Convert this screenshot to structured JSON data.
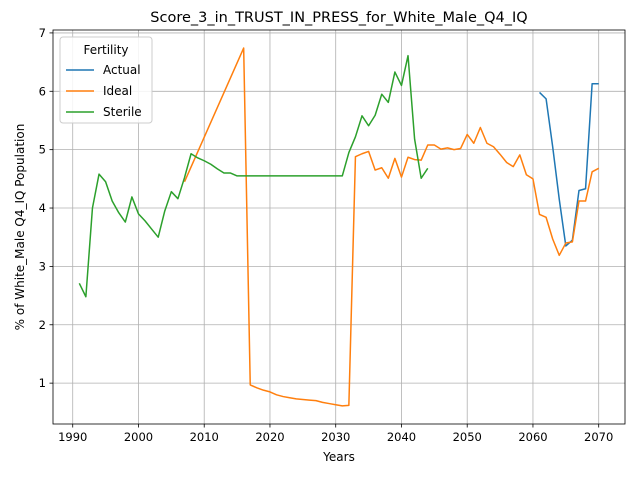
{
  "chart_data": {
    "type": "line",
    "title": "Score_3_in_TRUST_IN_PRESS_for_White_Male_Q4_IQ",
    "xlabel": "Years",
    "ylabel": "% of White_Male Q4_IQ Population",
    "xlim": [
      1987,
      2074
    ],
    "ylim": [
      0.3,
      7.05
    ],
    "xticks": [
      1990,
      2000,
      2010,
      2020,
      2030,
      2040,
      2050,
      2060,
      2070
    ],
    "yticks": [
      1,
      2,
      3,
      4,
      5,
      6,
      7
    ],
    "grid": true,
    "legend": {
      "title": "Fertility",
      "placement": "upper-left"
    },
    "series": [
      {
        "name": "Actual",
        "color": "#1f77b4",
        "x": [
          2061,
          2062,
          2063,
          2064,
          2065,
          2066,
          2067,
          2068,
          2069,
          2070
        ],
        "y": [
          5.98,
          5.87,
          5.05,
          4.15,
          3.35,
          3.45,
          4.3,
          4.33,
          6.13,
          6.13
        ]
      },
      {
        "name": "Ideal",
        "color": "#ff7f0e",
        "x": [
          2007,
          2016,
          2017,
          2018,
          2019,
          2020,
          2021,
          2022,
          2023,
          2024,
          2025,
          2026,
          2027,
          2028,
          2029,
          2030,
          2031,
          2032,
          2033,
          2034,
          2035,
          2036,
          2037,
          2038,
          2039,
          2040,
          2041,
          2042,
          2043,
          2044,
          2045,
          2046,
          2047,
          2048,
          2049,
          2050,
          2051,
          2052,
          2053,
          2054,
          2055,
          2056,
          2057,
          2058,
          2059,
          2060,
          2061,
          2062,
          2063,
          2064,
          2065,
          2066,
          2067,
          2068,
          2069,
          2070
        ],
        "y": [
          4.45,
          6.74,
          0.97,
          0.92,
          0.88,
          0.85,
          0.8,
          0.77,
          0.75,
          0.73,
          0.72,
          0.71,
          0.7,
          0.67,
          0.65,
          0.63,
          0.61,
          0.62,
          4.88,
          4.93,
          4.97,
          4.65,
          4.69,
          4.51,
          4.85,
          4.53,
          4.87,
          4.83,
          4.82,
          5.08,
          5.08,
          5.01,
          5.03,
          5.0,
          5.02,
          5.26,
          5.11,
          5.38,
          5.11,
          5.05,
          4.92,
          4.78,
          4.71,
          4.91,
          4.57,
          4.5,
          3.89,
          3.84,
          3.47,
          3.19,
          3.4,
          3.42,
          4.12,
          4.12,
          4.62,
          4.68
        ]
      },
      {
        "name": "Sterile",
        "color": "#2ca02c",
        "x": [
          1991,
          1992,
          1993,
          1994,
          1995,
          1996,
          1997,
          1998,
          1999,
          2000,
          2001,
          2002,
          2003,
          2004,
          2005,
          2006,
          2007,
          2008,
          2009,
          2010,
          2011,
          2012,
          2013,
          2014,
          2015,
          2016,
          2017,
          2018,
          2019,
          2020,
          2021,
          2022,
          2023,
          2024,
          2025,
          2026,
          2027,
          2028,
          2029,
          2030,
          2031,
          2032,
          2033,
          2034,
          2035,
          2036,
          2037,
          2038,
          2039,
          2040,
          2041,
          2042,
          2043,
          2044
        ],
        "y": [
          2.71,
          2.48,
          4.0,
          4.58,
          4.45,
          4.12,
          3.92,
          3.76,
          4.19,
          3.9,
          3.78,
          3.64,
          3.5,
          3.95,
          4.28,
          4.16,
          4.52,
          4.93,
          4.86,
          4.81,
          4.75,
          4.67,
          4.6,
          4.6,
          4.55,
          4.55,
          4.55,
          4.55,
          4.55,
          4.55,
          4.55,
          4.55,
          4.55,
          4.55,
          4.55,
          4.55,
          4.55,
          4.55,
          4.55,
          4.55,
          4.55,
          4.95,
          5.22,
          5.58,
          5.41,
          5.59,
          5.95,
          5.81,
          6.33,
          6.1,
          6.61,
          5.18,
          4.51,
          4.68
        ]
      }
    ]
  }
}
